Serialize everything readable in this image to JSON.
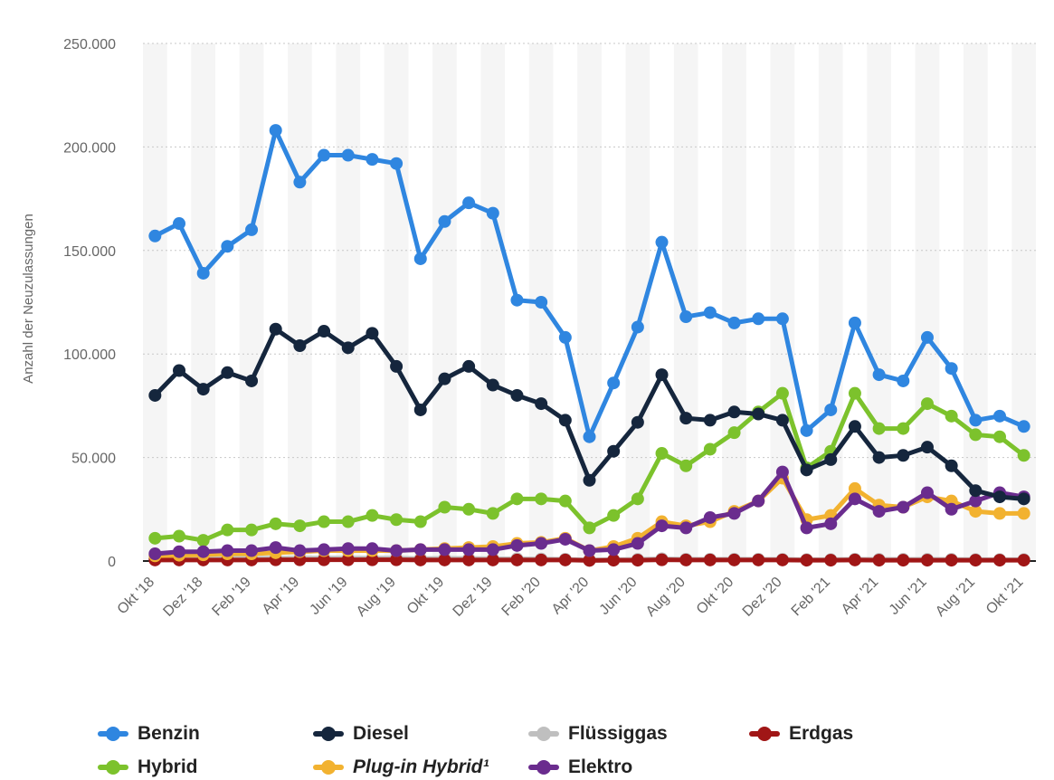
{
  "chart_data": {
    "type": "line",
    "title": "",
    "xlabel": "",
    "ylabel": "Anzahl der Neuzulassungen",
    "ylim": [
      0,
      250000
    ],
    "yticks": [
      0,
      50000,
      100000,
      150000,
      200000,
      250000
    ],
    "ytick_labels": [
      "0",
      "50.000",
      "100.000",
      "150.000",
      "200.000",
      "250.000"
    ],
    "grid": "horizontal-dotted",
    "legend_position": "bottom",
    "categories": [
      "Okt '18",
      "Nov '18",
      "Dez '18",
      "Jan '19",
      "Feb '19",
      "Mär '19",
      "Apr '19",
      "Mai '19",
      "Jun '19",
      "Jul '19",
      "Aug '19",
      "Sep '19",
      "Okt '19",
      "Nov '19",
      "Dez '19",
      "Jan '20",
      "Feb '20",
      "Mär '20",
      "Apr '20",
      "Mai '20",
      "Jun '20",
      "Jul '20",
      "Aug '20",
      "Sep '20",
      "Okt '20",
      "Nov '20",
      "Dez '20",
      "Jan '21",
      "Feb '21",
      "Mär '21",
      "Apr '21",
      "Mai '21",
      "Jun '21",
      "Jul '21",
      "Aug '21",
      "Sep '21",
      "Okt '21"
    ],
    "xtick_labels": [
      "Okt '18",
      "Dez '18",
      "Feb '19",
      "Apr '19",
      "Jun '19",
      "Aug '19",
      "Okt '19",
      "Dez '19",
      "Feb '20",
      "Apr '20",
      "Jun '20",
      "Aug '20",
      "Okt '20",
      "Dez '20",
      "Feb '21",
      "Apr '21",
      "Jun '21",
      "Aug '21",
      "Okt '21"
    ],
    "series": [
      {
        "name": "Benzin",
        "color": "#2f86e0",
        "values": [
          157000,
          163000,
          139000,
          152000,
          160000,
          208000,
          183000,
          196000,
          196000,
          194000,
          192000,
          146000,
          164000,
          173000,
          168000,
          126000,
          125000,
          108000,
          60000,
          86000,
          113000,
          154000,
          118000,
          120000,
          115000,
          117000,
          117000,
          63000,
          73000,
          115000,
          90000,
          87000,
          108000,
          93000,
          68000,
          70000,
          65000
        ]
      },
      {
        "name": "Diesel",
        "color": "#15263d",
        "values": [
          80000,
          92000,
          83000,
          91000,
          87000,
          112000,
          104000,
          111000,
          103000,
          110000,
          94000,
          73000,
          88000,
          94000,
          85000,
          80000,
          76000,
          68000,
          39000,
          53000,
          67000,
          90000,
          69000,
          68000,
          72000,
          71000,
          68000,
          44000,
          49000,
          65000,
          50000,
          51000,
          55000,
          46000,
          34000,
          31000,
          30000
        ]
      },
      {
        "name": "Flüssiggas",
        "color": "#bfbfbf",
        "values": [
          1200,
          1300,
          1200,
          1300,
          1300,
          1500,
          1400,
          1500,
          1400,
          1500,
          1400,
          1200,
          1300,
          1300,
          1100,
          1100,
          1000,
          900,
          500,
          700,
          800,
          1100,
          900,
          900,
          900,
          900,
          800,
          700,
          700,
          900,
          800,
          800,
          800,
          800,
          700,
          700,
          700
        ]
      },
      {
        "name": "Erdgas",
        "color": "#a01616",
        "values": [
          500,
          500,
          500,
          500,
          500,
          600,
          600,
          600,
          600,
          600,
          600,
          500,
          500,
          500,
          500,
          500,
          500,
          500,
          300,
          400,
          400,
          600,
          500,
          500,
          500,
          500,
          500,
          400,
          400,
          500,
          400,
          400,
          400,
          400,
          400,
          400,
          400
        ]
      },
      {
        "name": "Hybrid",
        "color": "#7cc22c",
        "values": [
          11000,
          12000,
          10000,
          15000,
          15000,
          18000,
          17000,
          19000,
          19000,
          22000,
          20000,
          19000,
          26000,
          25000,
          23000,
          30000,
          30000,
          29000,
          16000,
          22000,
          30000,
          52000,
          46000,
          54000,
          62000,
          72000,
          81000,
          45000,
          53000,
          81000,
          64000,
          64000,
          76000,
          70000,
          61000,
          60000,
          51000
        ]
      },
      {
        "name": "Plug-in Hybrid¹",
        "color": "#f2b230",
        "values": [
          2500,
          2800,
          3000,
          3500,
          3500,
          4000,
          4500,
          5000,
          5000,
          5000,
          5000,
          5500,
          6000,
          6500,
          7000,
          8500,
          9000,
          11000,
          5000,
          7000,
          11000,
          19000,
          17000,
          19000,
          24000,
          29000,
          40000,
          20000,
          22000,
          35000,
          27000,
          26000,
          31000,
          29000,
          24000,
          23000,
          23000
        ]
      },
      {
        "name": "Elektro",
        "color": "#6a2c8e",
        "values": [
          3500,
          4500,
          4500,
          5000,
          5000,
          6500,
          5000,
          5500,
          6000,
          6000,
          5000,
          5500,
          5500,
          5500,
          5500,
          7500,
          8500,
          10500,
          5000,
          5500,
          8500,
          17000,
          16000,
          21000,
          23000,
          29000,
          43000,
          16000,
          18000,
          30000,
          24000,
          26000,
          33000,
          25000,
          29000,
          33000,
          31000
        ]
      }
    ]
  },
  "legend": {
    "items": [
      {
        "label": "Benzin",
        "color": "#2f86e0",
        "italic": false
      },
      {
        "label": "Diesel",
        "color": "#15263d",
        "italic": false
      },
      {
        "label": "Flüssiggas",
        "color": "#bfbfbf",
        "italic": false
      },
      {
        "label": "Erdgas",
        "color": "#a01616",
        "italic": false
      },
      {
        "label": "Hybrid",
        "color": "#7cc22c",
        "italic": false
      },
      {
        "label": "Plug-in Hybrid¹",
        "color": "#f2b230",
        "italic": true
      },
      {
        "label": "Elektro",
        "color": "#6a2c8e",
        "italic": false
      }
    ]
  }
}
